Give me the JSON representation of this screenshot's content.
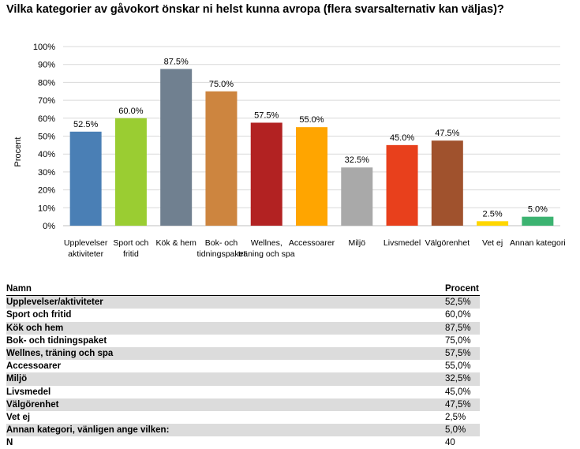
{
  "title": "Vilka kategorier av gåvokort önskar ni helst kunna avropa (flera svarsalternativ kan väljas)?",
  "chart_data": {
    "type": "bar",
    "ylabel": "Procent",
    "ylim": [
      0,
      100
    ],
    "ytick_step": 10,
    "ytick_labels": [
      "0%",
      "10%",
      "20%",
      "30%",
      "40%",
      "50%",
      "60%",
      "70%",
      "80%",
      "90%",
      "100%"
    ],
    "grid": true,
    "categories": [
      [
        "Upplevelser",
        "aktiviteter"
      ],
      [
        "Sport och",
        "fritid"
      ],
      [
        "Kök & hem"
      ],
      [
        "Bok- och",
        "tidningspaket"
      ],
      [
        "Wellnes,",
        "träning och spa"
      ],
      [
        "Accessoarer"
      ],
      [
        "Miljö"
      ],
      [
        "Livsmedel"
      ],
      [
        "Välgörenhet"
      ],
      [
        "Vet ej"
      ],
      [
        "Annan kategori"
      ]
    ],
    "values": [
      52.5,
      60.0,
      87.5,
      75.0,
      57.5,
      55.0,
      32.5,
      45.0,
      47.5,
      2.5,
      5.0
    ],
    "value_labels": [
      "52.5%",
      "60.0%",
      "87.5%",
      "75.0%",
      "57.5%",
      "55.0%",
      "32.5%",
      "45.0%",
      "47.5%",
      "2.5%",
      "5.0%"
    ],
    "colors": [
      "#4a7fb5",
      "#9acd32",
      "#708090",
      "#cd853f",
      "#b22222",
      "#ffa500",
      "#a9a9a9",
      "#e8401c",
      "#a0522d",
      "#ffd700",
      "#3cb371"
    ]
  },
  "table": {
    "headers": [
      "Namn",
      "Procent"
    ],
    "rows": [
      [
        "Upplevelser/aktiviteter",
        "52,5%"
      ],
      [
        "Sport och fritid",
        "60,0%"
      ],
      [
        "Kök och hem",
        "87,5%"
      ],
      [
        "Bok- och tidningspaket",
        "75,0%"
      ],
      [
        "Wellnes, träning och spa",
        "57,5%"
      ],
      [
        "Accessoarer",
        "55,0%"
      ],
      [
        "Miljö",
        "32,5%"
      ],
      [
        "Livsmedel",
        "45,0%"
      ],
      [
        "Välgörenhet",
        "47,5%"
      ],
      [
        "Vet ej",
        "2,5%"
      ],
      [
        "Annan kategori, vänligen ange vilken:",
        "5,0%"
      ],
      [
        "N",
        "40"
      ]
    ]
  }
}
